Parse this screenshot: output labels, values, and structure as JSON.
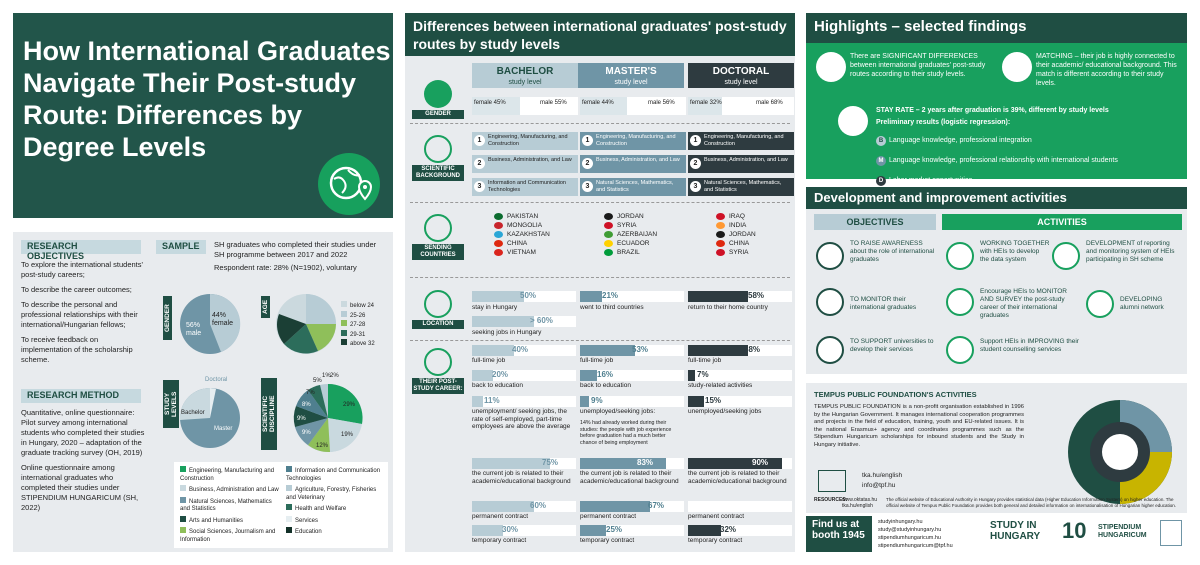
{
  "title": "How International Graduates Navigate Their Post-study Route: Differences by Degree Levels",
  "research_objectives": {
    "heading": "RESEARCH OBJECTIVES",
    "items": [
      "To explore the international students' post-study careers;",
      "To describe the career outcomes;",
      "To describe the personal and professional relationships with their international/Hungarian fellows;",
      "To receive feedback on implementation of the scholarship scheme."
    ]
  },
  "research_method": {
    "heading": "RESEARCH METHOD",
    "items": [
      "Quantitative, online questionnaire: Pilot survey among international students who completed their studies in Hungary, 2020 – adaptation of the graduate tracking survey (OH, 2019)",
      "Online questionnaire among international graduates who completed their studies under STIPENDIUM HUNGARICUM (SH, 2022)"
    ]
  },
  "sample": {
    "heading": "SAMPLE",
    "items": [
      "SH graduates who completed their studies under SH programme between 2017 and 2022",
      "Respondent rate: 28% (N=1902), voluntary"
    ]
  },
  "pies": {
    "gender": {
      "label": "GENDER",
      "male": "56% male",
      "female": "44% female"
    },
    "age": {
      "label": "AGE",
      "legend": [
        "below 24",
        "25-26",
        "27-28",
        "29-31",
        "above 32"
      ]
    },
    "levels": {
      "label": "STUDY LEVELS",
      "doctoral": "Doctoral",
      "bachelor": "Bachelor",
      "master": "Master"
    },
    "discipline": {
      "label": "SCIENTIFIC DISCIPLINE",
      "values": [
        "29%",
        "19%",
        "12%",
        "9%",
        "9%",
        "8%",
        "7%",
        "5%",
        "1%",
        "2%"
      ]
    }
  },
  "discipline_legend": [
    "Engineering, Manufacturing and Construction",
    "Information and Communication Technologies",
    "Business, Administration and Law",
    "Agriculture, Forestry, Fisheries and Veterinary",
    "Natural Sciences, Mathematics and Statistics",
    "Health and Welfare",
    "Arts and Humanities",
    "Services",
    "Social Sciences, Journalism and Information",
    "Education"
  ],
  "differences": {
    "title": "Differences between international graduates' post-study routes by study levels",
    "columns": [
      {
        "name": "BACHELOR",
        "sub": "study level",
        "female": "female 45%",
        "male": "male 55%"
      },
      {
        "name": "MASTER'S",
        "sub": "study level",
        "female": "female 44%",
        "male": "male 56%"
      },
      {
        "name": "DOCTORAL",
        "sub": "study level",
        "female": "female 32%",
        "male": "male 68%"
      }
    ],
    "row_labels": [
      "GENDER",
      "SCIENTIFIC BACKGROUND",
      "SENDING COUNTRIES",
      "LOCATION",
      "THEIR POST-STUDY CAREER:"
    ],
    "background": [
      [
        "Engineering, Manufacturing, and Construction",
        "Business, Administration, and Law",
        "Information and Communication Technologies"
      ],
      [
        "Engineering, Manufacturing, and Construction",
        "Business, Administration, and Law",
        "Natural Sciences, Mathematics, and Statistics"
      ],
      [
        "Engineering, Manufacturing, and Construction",
        "Business, Administration, and Law",
        "Natural Sciences, Mathematics, and Statistics"
      ]
    ],
    "countries": [
      [
        "PAKISTAN",
        "MONGOLIA",
        "KAZAKHSTAN",
        "CHINA",
        "VIETNAM"
      ],
      [
        "JORDAN",
        "SYRIA",
        "AZERBAIJAN",
        "ECUADOR",
        "BRAZIL"
      ],
      [
        "IRAQ",
        "INDIA",
        "JORDAN",
        "CHINA",
        "SYRIA"
      ]
    ],
    "location": [
      {
        "v1": "50%",
        "l1": "stay in Hungary",
        "v2": "> 60%",
        "l2": "seeking jobs in Hungary"
      },
      {
        "v1": "21%",
        "l1": "went to third countries"
      },
      {
        "v1": "58%",
        "l1": "return to their home country"
      }
    ],
    "career": [
      [
        {
          "v": "40%",
          "l": "full-time job"
        },
        {
          "v": "20%",
          "l": "back to education"
        },
        {
          "v": "11%",
          "l": "unemployment/ seeking jobs, the rate of self-employed, part-time employees are above the average"
        },
        {
          "v": "75%",
          "l": "the current job is related to their academic/educational background"
        },
        {
          "v": "60%",
          "l": "permanent contract"
        },
        {
          "v": "30%",
          "l": "temporary contract"
        }
      ],
      [
        {
          "v": "53%",
          "l": "full-time job"
        },
        {
          "v": "16%",
          "l": "back to education"
        },
        {
          "v": "9%",
          "l": "unemployed/seeking jobs:",
          "note": "14% had already worked during their studies: the people with job experience before graduation had a much better chance of being employment"
        },
        {
          "v": "83%",
          "l": "the current job is related to their academic/educational background"
        },
        {
          "v": "67%",
          "l": "permanent contract"
        },
        {
          "v": "25%",
          "l": "temporary contract"
        }
      ],
      [
        {
          "v": "58%",
          "l": "full-time job"
        },
        {
          "v": "7%",
          "l": "study-related activities"
        },
        {
          "v": "15%",
          "l": "unemployed/seeking jobs"
        },
        {
          "v": "90%",
          "l": "the current job is related to their academic/educational background"
        },
        {
          "v": "",
          "l": "permanent contract"
        },
        {
          "v": "32%",
          "l": "temporary contract"
        }
      ]
    ]
  },
  "highlights": {
    "title": "Highlights – selected findings",
    "f1": "There are SIGNIFICANT DIFFERENCES between international graduates' post-study routes according to their study levels.",
    "f2": "MATCHING – their job is highly connected to their academic/ educational background. This match is different according to their study levels.",
    "stay": "STAY RATE – 2 years after graduation is 39%, different by study levels",
    "prelim": "Preliminary results (logistic regression):",
    "results": [
      {
        "k": "B",
        "t": "Language knowledge, professional integration"
      },
      {
        "k": "M",
        "t": "Language knowledge, professional relationship with international students"
      },
      {
        "k": "D",
        "t": "Labor market opportunities"
      }
    ]
  },
  "development": {
    "title": "Development and improvement activities",
    "objectives_label": "OBJECTIVES",
    "activities_label": "ACTIVITIES",
    "objectives": [
      "TO RAISE AWARENESS about the role of international graduates",
      "TO MONITOR their international graduates",
      "TO SUPPORT universities to develop their services"
    ],
    "activities": [
      "WORKING TOGETHER with HEIs to develop the data system",
      "DEVELOPMENT of reporting and monitoring system of HEIs participating in SH scheme",
      "Encourage HEIs to MONITOR AND SURVEY the post-study career of their international graduates",
      "DEVELOPING alumni network",
      "Support HEIs in IMPROVING their student counselling services"
    ]
  },
  "tempus": {
    "heading": "TEMPUS PUBLIC FOUNDATION'S ACTIVITIES",
    "body": "TEMPUS PUBLIC FOUNDATION is a non-profit organisation established in 1996 by the Hungarian Government. It manages international cooperation programmes and projects in the field of education, training, youth and EU-related issues. It is the national Erasmus+ agency and coordinates programmes such as the Stipendium Hungaricum scholarships for inbound students and the Study in Hungary initiative.",
    "web": "tka.hu/english",
    "mail": "info@tpf.hu",
    "resources_label": "RESOURCES:",
    "resources_links": "www.oktatas.hu tka.hu/english",
    "resources_note": "The official website of Educational Authority in Hungary provides statistical data (Higher Education Information System) on higher education. The official website of Tempus Public Foundation provides both general and detailed information on internationalisation of Hungarian higher education."
  },
  "footer": {
    "booth_line1": "Find us at",
    "booth_line2": "booth 1945",
    "links": [
      "studyinhungary.hu",
      "study@studyinhungary.hu",
      "stipendiumhungaricum.hu",
      "stipendiumhungaricum@tpf.hu"
    ],
    "study_logo": "STUDY IN HUNGARY",
    "stip_logo": "STIPENDIUM HUNGARICUM",
    "years": "10"
  }
}
